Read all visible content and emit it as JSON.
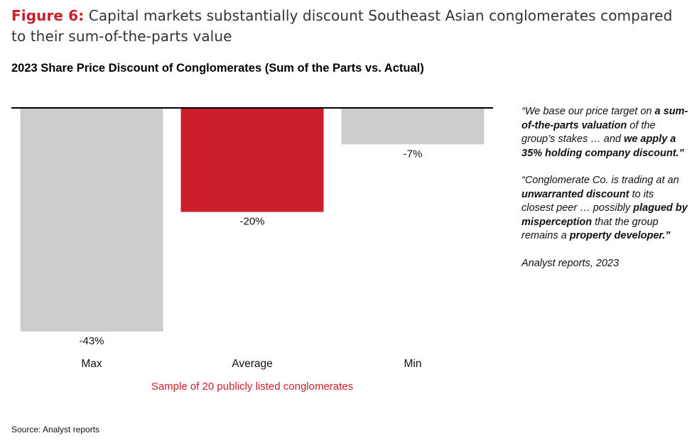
{
  "figure": {
    "label": "Figure 6:",
    "title": "Capital markets substantially discount Southeast Asian conglomerates compared to their sum-of-the-parts value"
  },
  "chart_data": {
    "type": "bar",
    "title": "2023 Share Price Discount of Conglomerates (Sum of the Parts vs. Actual)",
    "categories": [
      "Max",
      "Average",
      "Min"
    ],
    "values": [
      -43,
      -20,
      -7
    ],
    "data_labels": [
      "-43%",
      "-20%",
      "-7%"
    ],
    "colors": [
      "#cccccc",
      "#cc1f2b",
      "#cccccc"
    ],
    "baseline_color": "#000000",
    "ylim": [
      -43,
      0
    ],
    "grid": false,
    "legend": "none"
  },
  "quotes": {
    "q1": {
      "p1": "“We base our price target on ",
      "b1": "a sum-of-the-parts valuation",
      "p2": " of the group’s stakes … and ",
      "b2": "we apply a 35% holding company discount.”"
    },
    "q2": {
      "p1": "“Conglomerate Co. is trading at an ",
      "b1": "unwarranted discount",
      "p2": " to its closest peer … possibly ",
      "b2": "plagued by misperception",
      "p3": " that the group remains a ",
      "b3": "property developer.”"
    },
    "attribution": "Analyst reports, 2023"
  },
  "footnote": "Sample of 20 publicly listed conglomerates",
  "source": "Source: Analyst reports"
}
